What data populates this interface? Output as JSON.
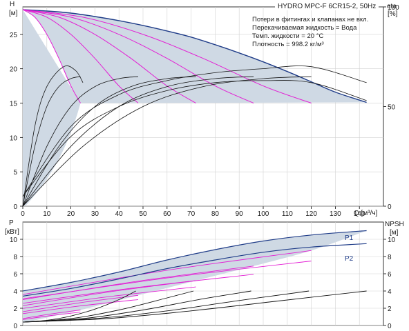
{
  "chart_data": [
    {
      "type": "line",
      "title": "HYDRO MPC-F 6CR15-2, 50Hz",
      "notes": [
        "Потери в фитингах и клапанах не вкл.",
        "Перекачиваемая жидкость = Вода",
        "Темп. жидкости = 20 °C",
        "Плотность = 998.2 кг/м³"
      ],
      "xlabel": "Q [м³/ч]",
      "xlim": [
        0,
        150
      ],
      "xticks": [
        0,
        10,
        20,
        30,
        40,
        50,
        60,
        70,
        80,
        90,
        100,
        110,
        120,
        130,
        140
      ],
      "ylabel": "H",
      "ylabel_unit": "[м]",
      "ylim": [
        0,
        29
      ],
      "yticks": [
        0,
        5,
        10,
        15,
        20,
        25
      ],
      "y2label": "eta",
      "y2label_unit": "[%]",
      "y2lim": [
        0,
        100
      ],
      "y2ticks": [
        0,
        50,
        100
      ],
      "max_curve": {
        "x": [
          0,
          10,
          20,
          30,
          40,
          50,
          60,
          70,
          80,
          90,
          100,
          110,
          120,
          130,
          143
        ],
        "y": [
          28.6,
          28.4,
          28.1,
          27.6,
          27.0,
          26.3,
          25.5,
          24.6,
          23.5,
          22.3,
          21.0,
          19.6,
          18.1,
          16.6,
          15.1
        ]
      },
      "min_head": 15,
      "reduced_speed_curves": [
        {
          "x": [
            0,
            5,
            10,
            15,
            20,
            24
          ],
          "y": [
            28.6,
            27.5,
            25.0,
            21.5,
            17.5,
            15.0
          ]
        },
        {
          "x": [
            0,
            10,
            20,
            30,
            40,
            48
          ],
          "y": [
            28.6,
            27.5,
            25.0,
            21.5,
            17.5,
            15.0
          ]
        },
        {
          "x": [
            0,
            15,
            30,
            45,
            60,
            72
          ],
          "y": [
            28.6,
            27.5,
            25.0,
            21.5,
            17.5,
            15.0
          ]
        },
        {
          "x": [
            0,
            20,
            40,
            60,
            80,
            96
          ],
          "y": [
            28.6,
            27.5,
            25.0,
            21.5,
            17.5,
            15.0
          ]
        },
        {
          "x": [
            0,
            25,
            50,
            75,
            100,
            120
          ],
          "y": [
            28.6,
            27.5,
            25.0,
            21.5,
            17.5,
            15.0
          ]
        }
      ],
      "efficiency_curves": [
        {
          "x": [
            0,
            5,
            10,
            15,
            20,
            24
          ],
          "y": [
            0,
            30,
            50,
            60,
            64,
            65
          ]
        },
        {
          "x": [
            0,
            10,
            20,
            30,
            40,
            48
          ],
          "y": [
            0,
            30,
            50,
            60,
            64,
            65
          ]
        },
        {
          "x": [
            0,
            15,
            30,
            45,
            60,
            72
          ],
          "y": [
            0,
            30,
            50,
            60,
            64,
            65
          ]
        },
        {
          "x": [
            0,
            20,
            40,
            60,
            80,
            96
          ],
          "y": [
            0,
            30,
            50,
            60,
            64,
            65
          ]
        },
        {
          "x": [
            0,
            25,
            50,
            75,
            100,
            120
          ],
          "y": [
            0,
            30,
            50,
            60,
            64,
            65
          ]
        },
        {
          "x": [
            0,
            5,
            10,
            17,
            22,
            25
          ],
          "y": [
            0,
            40,
            60,
            70,
            68,
            62
          ]
        },
        {
          "x": [
            0,
            20,
            40,
            60,
            80,
            100,
            120,
            143
          ],
          "y": [
            5,
            40,
            56,
            63,
            67,
            69,
            70,
            62
          ]
        },
        {
          "x": [
            0,
            20,
            40,
            60,
            80,
            100,
            120,
            143
          ],
          "y": [
            5,
            35,
            50,
            58,
            62,
            63,
            62,
            53
          ]
        }
      ]
    },
    {
      "type": "line",
      "ylabel": "P",
      "ylabel_unit": "[кВт]",
      "ylim": [
        0,
        12
      ],
      "yticks": [
        0,
        2,
        4,
        6,
        8,
        10
      ],
      "y2label": "NPSH",
      "y2label_unit": "[м]",
      "y2lim": [
        0,
        12
      ],
      "y2ticks": [
        0,
        2,
        4,
        6,
        8,
        10
      ],
      "xlim": [
        0,
        150
      ],
      "series": [
        {
          "name": "P1",
          "x": [
            0,
            20,
            40,
            60,
            80,
            100,
            120,
            143
          ],
          "y": [
            4.0,
            5.0,
            6.2,
            7.6,
            8.8,
            9.8,
            10.5,
            11.0
          ]
        },
        {
          "name": "P2",
          "x": [
            0,
            20,
            40,
            60,
            80,
            100,
            120,
            143
          ],
          "y": [
            3.4,
            4.3,
            5.4,
            6.6,
            7.6,
            8.5,
            9.1,
            9.5
          ]
        }
      ],
      "power_reduced_curves": [
        {
          "x": [
            0,
            24
          ],
          "y": [
            0.8,
            1.8
          ]
        },
        {
          "x": [
            0,
            48
          ],
          "y": [
            1.6,
            3.5
          ]
        },
        {
          "x": [
            0,
            72
          ],
          "y": [
            2.3,
            5.2
          ]
        },
        {
          "x": [
            0,
            96
          ],
          "y": [
            3.0,
            6.9
          ]
        },
        {
          "x": [
            0,
            120
          ],
          "y": [
            3.6,
            8.7
          ]
        }
      ],
      "npsh_curves": [
        {
          "x": [
            0,
            10,
            20,
            30,
            40,
            47
          ],
          "y": [
            0.4,
            0.6,
            1.1,
            1.9,
            3.0,
            4.0
          ]
        },
        {
          "x": [
            0,
            20,
            40,
            60,
            71
          ],
          "y": [
            0.4,
            0.8,
            1.8,
            3.2,
            4.0
          ]
        },
        {
          "x": [
            0,
            25,
            50,
            75,
            95
          ],
          "y": [
            0.4,
            0.8,
            1.8,
            3.1,
            4.0
          ]
        },
        {
          "x": [
            0,
            30,
            60,
            90,
            119
          ],
          "y": [
            0.4,
            0.8,
            1.7,
            2.9,
            4.0
          ]
        },
        {
          "x": [
            0,
            35,
            70,
            105,
            143
          ],
          "y": [
            0.4,
            0.8,
            1.7,
            2.8,
            4.0
          ]
        }
      ]
    }
  ]
}
